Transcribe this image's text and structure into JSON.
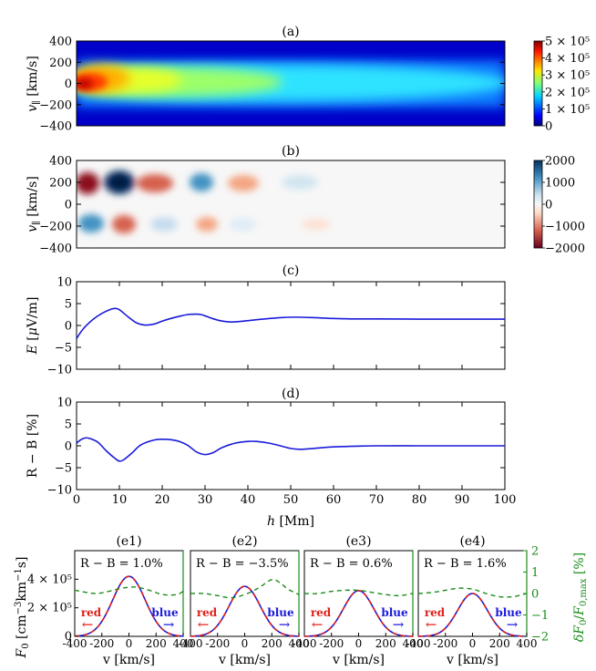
{
  "chart_data": [
    {
      "id": "a",
      "type": "heatmap",
      "panel_label": "(a)",
      "ylabel": "v_∥ [km/s]",
      "ylim": [
        -400,
        400
      ],
      "xlim": [
        0,
        100
      ],
      "yticks": [
        "400",
        "200",
        "0",
        "−200",
        "−400"
      ],
      "colorbar": {
        "min": 0,
        "max": 500000,
        "ticks": [
          "5 × 10⁵",
          "4 × 10⁵",
          "3 × 10⁵",
          "2 × 10⁵",
          "1 × 10⁵",
          "0"
        ]
      },
      "description_cmap": "jet"
    },
    {
      "id": "b",
      "type": "heatmap",
      "panel_label": "(b)",
      "ylabel": "v_∥ [km/s]",
      "ylim": [
        -400,
        400
      ],
      "xlim": [
        0,
        100
      ],
      "yticks": [
        "400",
        "200",
        "0",
        "−200",
        "−400"
      ],
      "colorbar": {
        "min": -2000,
        "max": 2000,
        "ticks": [
          "2000",
          "1000",
          "0",
          "−1000",
          "−2000"
        ]
      }
    },
    {
      "id": "c",
      "type": "line",
      "panel_label": "(c)",
      "ylabel": "E [μV/m]",
      "ylim": [
        -10,
        10
      ],
      "xlim": [
        0,
        100
      ],
      "yticks": [
        "10",
        "5",
        "0",
        "−5",
        "−10"
      ],
      "color": "#1a1adb",
      "x": [
        0,
        1,
        2,
        4,
        6,
        8,
        9,
        10,
        12,
        14,
        16,
        18,
        20,
        22,
        24,
        26,
        28,
        29,
        30,
        32,
        34,
        36,
        38,
        40,
        44,
        48,
        51,
        55,
        60,
        65,
        70,
        80,
        90,
        100
      ],
      "y": [
        -3.0,
        -1.5,
        -0.3,
        1.5,
        2.8,
        3.7,
        3.9,
        3.6,
        2.0,
        0.6,
        0.1,
        0.3,
        1.0,
        1.6,
        2.1,
        2.5,
        2.6,
        2.5,
        2.2,
        1.5,
        1.0,
        0.8,
        0.9,
        1.1,
        1.5,
        1.8,
        1.9,
        1.8,
        1.6,
        1.5,
        1.5,
        1.45,
        1.45,
        1.45
      ]
    },
    {
      "id": "d",
      "type": "line",
      "panel_label": "(d)",
      "ylabel": "R − B [%]",
      "xlabel": "h [Mm]",
      "ylim": [
        -10,
        10
      ],
      "xlim": [
        0,
        100
      ],
      "yticks": [
        "10",
        "5",
        "0",
        "−5",
        "−10"
      ],
      "xticks": [
        "0",
        "10",
        "20",
        "30",
        "40",
        "50",
        "60",
        "70",
        "80",
        "90",
        "100"
      ],
      "color": "#1a1adb",
      "x": [
        0,
        1,
        2,
        3,
        5,
        7,
        9,
        10,
        11,
        13,
        15,
        18,
        20,
        22,
        24,
        26,
        28,
        30,
        32,
        34,
        37,
        40,
        42,
        45,
        48,
        50,
        52,
        54,
        57,
        60,
        65,
        70,
        80,
        90,
        100
      ],
      "y": [
        0.6,
        1.4,
        1.8,
        1.7,
        0.8,
        -1.2,
        -2.9,
        -3.5,
        -3.2,
        -1.6,
        0.2,
        1.3,
        1.5,
        1.4,
        1.0,
        0.1,
        -1.4,
        -2.0,
        -1.5,
        -0.4,
        0.6,
        1.0,
        1.0,
        0.6,
        -0.1,
        -0.6,
        -0.8,
        -0.7,
        -0.45,
        -0.25,
        -0.1,
        0.0,
        0.0,
        0.0,
        0.0
      ]
    },
    {
      "id": "e",
      "type": "line",
      "left_ylabel": "F₀ [cm⁻³km⁻¹s]",
      "right_ylabel": "δF₀/F₀,max [%]",
      "xlabel": "v [km/s]",
      "xlim": [
        -400,
        400
      ],
      "xticks": [
        "-400",
        "-200",
        "0",
        "200",
        "400"
      ],
      "left_ylim": [
        0,
        600000
      ],
      "left_yticks": [
        "4 × 10⁵",
        "2 × 10⁵",
        "0"
      ],
      "right_ylim": [
        -2,
        2
      ],
      "right_yticks": [
        "2",
        "1",
        "0",
        "−1",
        "−2"
      ],
      "red_label": "red",
      "blue_label": "blue",
      "panels": [
        {
          "label": "(e1)",
          "text": "R − B = 1.0%",
          "peak": 420000,
          "width": 120,
          "dash": [
            [
              -400,
              0.15
            ],
            [
              -250,
              0.0
            ],
            [
              -150,
              0.1
            ],
            [
              -50,
              0.25
            ],
            [
              50,
              0.3
            ],
            [
              150,
              0.15
            ],
            [
              250,
              -0.05
            ],
            [
              350,
              -0.05
            ],
            [
              400,
              0.1
            ]
          ]
        },
        {
          "label": "(e2)",
          "text": "R − B = −3.5%",
          "peak": 350000,
          "width": 115,
          "dash": [
            [
              -400,
              0.0
            ],
            [
              -300,
              0.0
            ],
            [
              -200,
              -0.1
            ],
            [
              -100,
              -0.2
            ],
            [
              0,
              -0.05
            ],
            [
              100,
              0.25
            ],
            [
              200,
              0.65
            ],
            [
              260,
              0.5
            ],
            [
              320,
              0.2
            ],
            [
              400,
              -0.05
            ]
          ]
        },
        {
          "label": "(e3)",
          "text": "R − B = 0.6%",
          "peak": 320000,
          "width": 112,
          "dash": [
            [
              -400,
              0.0
            ],
            [
              -300,
              0.0
            ],
            [
              -200,
              0.1
            ],
            [
              -100,
              0.15
            ],
            [
              0,
              0.15
            ],
            [
              100,
              0.05
            ],
            [
              200,
              -0.05
            ],
            [
              300,
              -0.1
            ],
            [
              400,
              0.0
            ]
          ]
        },
        {
          "label": "(e4)",
          "text": "R − B = 1.6%",
          "peak": 300000,
          "width": 110,
          "dash": [
            [
              -400,
              0.0
            ],
            [
              -300,
              0.05
            ],
            [
              -200,
              0.15
            ],
            [
              -100,
              0.25
            ],
            [
              0,
              0.2
            ],
            [
              100,
              0.0
            ],
            [
              200,
              -0.15
            ],
            [
              300,
              -0.15
            ],
            [
              400,
              0.0
            ]
          ]
        }
      ]
    }
  ]
}
